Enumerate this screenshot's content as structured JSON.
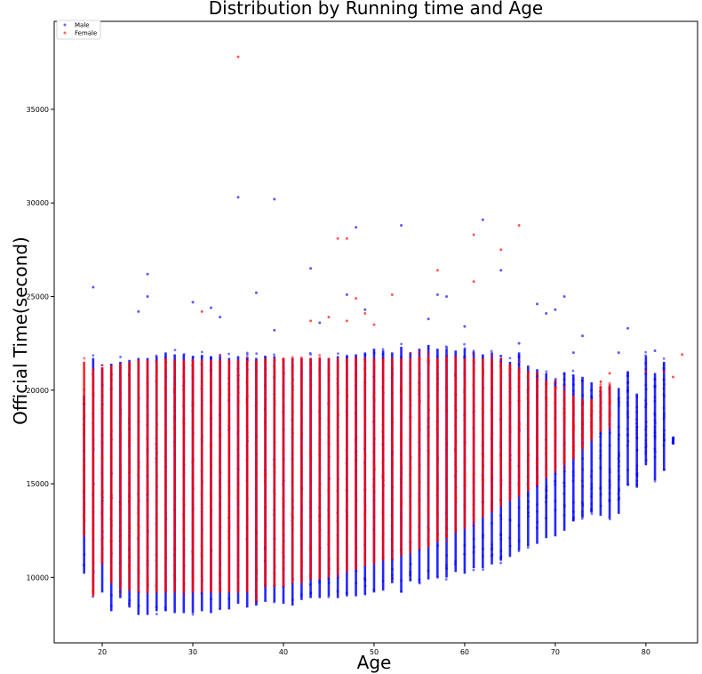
{
  "chart_data": {
    "type": "scatter",
    "title": "Distribution by Running time and Age",
    "xlabel": "Age",
    "ylabel": "Official Time(second)",
    "xlim": [
      14.7,
      85.7
    ],
    "ylim": [
      6500,
      39700
    ],
    "xticks": [
      20,
      30,
      40,
      50,
      60,
      70,
      80
    ],
    "yticks": [
      10000,
      15000,
      20000,
      25000,
      30000,
      35000
    ],
    "grid": false,
    "legend_position": "top-left",
    "series": [
      {
        "name": "Male",
        "color": "#0000ff",
        "ranges": [
          [
            18,
            10000,
            20000
          ],
          [
            19,
            8900,
            22000
          ],
          [
            20,
            9000,
            21500
          ],
          [
            21,
            8000,
            21700
          ],
          [
            22,
            8700,
            21800
          ],
          [
            23,
            8200,
            21900
          ],
          [
            24,
            7800,
            22000
          ],
          [
            25,
            7800,
            22000
          ],
          [
            26,
            8000,
            22100
          ],
          [
            27,
            8000,
            22300
          ],
          [
            28,
            7900,
            22200
          ],
          [
            29,
            7900,
            22200
          ],
          [
            30,
            7900,
            22100
          ],
          [
            31,
            8000,
            22100
          ],
          [
            32,
            7900,
            22100
          ],
          [
            33,
            8100,
            22100
          ],
          [
            34,
            8100,
            22000
          ],
          [
            35,
            8400,
            22100
          ],
          [
            36,
            8200,
            22000
          ],
          [
            37,
            8300,
            22000
          ],
          [
            38,
            8500,
            22100
          ],
          [
            39,
            8500,
            22100
          ],
          [
            40,
            8400,
            22000
          ],
          [
            41,
            8300,
            22000
          ],
          [
            42,
            8600,
            22000
          ],
          [
            43,
            8700,
            22000
          ],
          [
            44,
            8700,
            22000
          ],
          [
            45,
            8800,
            22000
          ],
          [
            46,
            8700,
            22100
          ],
          [
            47,
            8800,
            22100
          ],
          [
            48,
            8800,
            22200
          ],
          [
            49,
            8900,
            22300
          ],
          [
            50,
            9000,
            22500
          ],
          [
            51,
            9100,
            22400
          ],
          [
            52,
            9500,
            22300
          ],
          [
            53,
            9000,
            22600
          ],
          [
            54,
            9600,
            22300
          ],
          [
            55,
            9500,
            22500
          ],
          [
            56,
            9700,
            22700
          ],
          [
            57,
            9800,
            22500
          ],
          [
            58,
            9800,
            22500
          ],
          [
            59,
            10100,
            22400
          ],
          [
            60,
            10000,
            22500
          ],
          [
            61,
            10300,
            22300
          ],
          [
            62,
            10300,
            22200
          ],
          [
            63,
            10500,
            22300
          ],
          [
            64,
            10700,
            22000
          ],
          [
            65,
            10900,
            21800
          ],
          [
            66,
            11300,
            22300
          ],
          [
            67,
            11500,
            21600
          ],
          [
            68,
            11600,
            21400
          ],
          [
            69,
            11900,
            21200
          ],
          [
            70,
            12000,
            20800
          ],
          [
            71,
            12300,
            21200
          ],
          [
            72,
            12800,
            21100
          ],
          [
            73,
            13000,
            21000
          ],
          [
            74,
            13300,
            20700
          ],
          [
            75,
            13100,
            20200
          ],
          [
            76,
            13000,
            20500
          ],
          [
            77,
            13200,
            20400
          ],
          [
            78,
            14700,
            21300
          ],
          [
            79,
            14600,
            20100
          ],
          [
            80,
            15800,
            22100
          ],
          [
            81,
            15000,
            21200
          ],
          [
            82,
            15500,
            21800
          ],
          [
            83,
            17100,
            17500
          ]
        ],
        "outliers": [
          [
            19,
            25500
          ],
          [
            24,
            24200
          ],
          [
            25,
            26200
          ],
          [
            25,
            25000
          ],
          [
            30,
            24700
          ],
          [
            32,
            24400
          ],
          [
            33,
            23900
          ],
          [
            35,
            30300
          ],
          [
            37,
            25200
          ],
          [
            39,
            30200
          ],
          [
            39,
            23200
          ],
          [
            43,
            26500
          ],
          [
            44,
            23600
          ],
          [
            47,
            25100
          ],
          [
            48,
            28700
          ],
          [
            49,
            24300
          ],
          [
            53,
            28800
          ],
          [
            56,
            23800
          ],
          [
            57,
            25100
          ],
          [
            58,
            25000
          ],
          [
            60,
            23400
          ],
          [
            62,
            29100
          ],
          [
            64,
            26400
          ],
          [
            66,
            22500
          ],
          [
            68,
            24600
          ],
          [
            69,
            24100
          ],
          [
            70,
            24300
          ],
          [
            71,
            25000
          ],
          [
            73,
            22900
          ],
          [
            78,
            23300
          ],
          [
            72,
            22000
          ],
          [
            77,
            22000
          ],
          [
            81,
            22100
          ]
        ]
      },
      {
        "name": "Female",
        "color": "#ff0000",
        "ranges": [
          [
            18,
            12000,
            21800
          ],
          [
            19,
            8800,
            21300
          ],
          [
            20,
            10500,
            21500
          ],
          [
            21,
            9500,
            21600
          ],
          [
            22,
            9200,
            21700
          ],
          [
            23,
            9100,
            21800
          ],
          [
            24,
            9000,
            21900
          ],
          [
            25,
            9000,
            21900
          ],
          [
            26,
            9000,
            21900
          ],
          [
            27,
            9000,
            22000
          ],
          [
            28,
            9000,
            21900
          ],
          [
            29,
            9000,
            21900
          ],
          [
            30,
            9000,
            21900
          ],
          [
            31,
            9000,
            21900
          ],
          [
            32,
            9000,
            21900
          ],
          [
            33,
            9000,
            21900
          ],
          [
            34,
            9000,
            21900
          ],
          [
            35,
            9000,
            21900
          ],
          [
            36,
            9000,
            21900
          ],
          [
            37,
            8500,
            21900
          ],
          [
            38,
            9300,
            22000
          ],
          [
            39,
            9300,
            22000
          ],
          [
            40,
            9300,
            22000
          ],
          [
            41,
            9500,
            22000
          ],
          [
            42,
            9500,
            22000
          ],
          [
            43,
            9700,
            22000
          ],
          [
            44,
            9700,
            22000
          ],
          [
            45,
            9800,
            22000
          ],
          [
            46,
            10000,
            22000
          ],
          [
            47,
            10100,
            22000
          ],
          [
            48,
            10200,
            22000
          ],
          [
            49,
            10400,
            22000
          ],
          [
            50,
            10500,
            22000
          ],
          [
            51,
            10700,
            22000
          ],
          [
            52,
            10800,
            22000
          ],
          [
            53,
            11000,
            22000
          ],
          [
            54,
            11100,
            22000
          ],
          [
            55,
            11300,
            22100
          ],
          [
            56,
            11400,
            22100
          ],
          [
            57,
            11700,
            22000
          ],
          [
            58,
            11900,
            22100
          ],
          [
            59,
            12200,
            22100
          ],
          [
            60,
            12400,
            22000
          ],
          [
            61,
            12700,
            22000
          ],
          [
            62,
            13000,
            22000
          ],
          [
            63,
            13300,
            22000
          ],
          [
            64,
            13600,
            21800
          ],
          [
            65,
            13900,
            21700
          ],
          [
            66,
            14100,
            21500
          ],
          [
            67,
            14400,
            21300
          ],
          [
            68,
            14700,
            21000
          ],
          [
            69,
            15100,
            20800
          ],
          [
            70,
            15500,
            20500
          ],
          [
            71,
            15800,
            20300
          ],
          [
            72,
            16200,
            20000
          ],
          [
            73,
            16700,
            19800
          ],
          [
            74,
            17100,
            19800
          ],
          [
            75,
            17600,
            20500
          ],
          [
            76,
            17800,
            20600
          ]
        ],
        "outliers": [
          [
            35,
            37800
          ],
          [
            46,
            28100
          ],
          [
            47,
            28100
          ],
          [
            61,
            28300
          ],
          [
            66,
            28800
          ],
          [
            57,
            26400
          ],
          [
            64,
            27500
          ],
          [
            61,
            25800
          ],
          [
            52,
            25100
          ],
          [
            48,
            24900
          ],
          [
            45,
            23900
          ],
          [
            43,
            23700
          ],
          [
            49,
            24100
          ],
          [
            31,
            24200
          ],
          [
            47,
            23700
          ],
          [
            50,
            23500
          ],
          [
            82,
            21000
          ],
          [
            84,
            21900
          ],
          [
            83,
            20700
          ],
          [
            76,
            20900
          ],
          [
            80,
            21000
          ]
        ]
      }
    ]
  }
}
